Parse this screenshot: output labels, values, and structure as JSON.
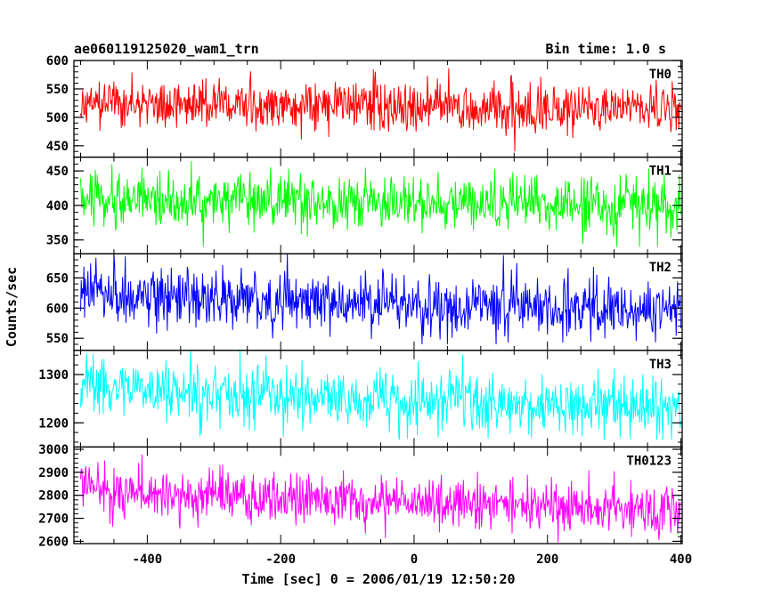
{
  "header": {
    "left_title": "ae060119125020_wam1_trn",
    "right_title": "Bin time: 1.0 s"
  },
  "chart_data": {
    "type": "line",
    "xlabel": "Time [sec] 0 = 2006/01/19 12:50:20",
    "ylabel": "Counts/sec",
    "xlim": [
      -510,
      402
    ],
    "xticks": [
      -400,
      -200,
      0,
      200,
      400
    ],
    "x_sampling": {
      "start": -500,
      "end": 400,
      "step": 1
    },
    "grid": false,
    "panels": [
      {
        "name": "TH0",
        "color": "#ff0000",
        "ylim": [
          430,
          600
        ],
        "yticks": [
          450,
          500,
          550,
          600
        ],
        "mean_start": 525,
        "mean_end": 515,
        "noise_sd": 22,
        "min": 440,
        "max": 600
      },
      {
        "name": "TH1",
        "color": "#00ff00",
        "ylim": [
          330,
          470
        ],
        "yticks": [
          350,
          400,
          450
        ],
        "mean_start": 410,
        "mean_end": 400,
        "noise_sd": 20,
        "min": 340,
        "max": 465
      },
      {
        "name": "TH2",
        "color": "#0000ff",
        "ylim": [
          530,
          690
        ],
        "yticks": [
          550,
          600,
          650
        ],
        "mean_start": 620,
        "mean_end": 595,
        "noise_sd": 24,
        "min": 540,
        "max": 690
      },
      {
        "name": "TH3",
        "color": "#00ffff",
        "ylim": [
          1150,
          1350
        ],
        "yticks": [
          1200,
          1300
        ],
        "mean_start": 1270,
        "mean_end": 1230,
        "noise_sd": 30,
        "min": 1165,
        "max": 1350
      },
      {
        "name": "TH0123",
        "color": "#ff00ff",
        "ylim": [
          2590,
          3010
        ],
        "yticks": [
          2600,
          2700,
          2800,
          2900,
          3000
        ],
        "mean_start": 2820,
        "mean_end": 2730,
        "noise_sd": 55,
        "min": 2595,
        "max": 3000
      }
    ]
  }
}
